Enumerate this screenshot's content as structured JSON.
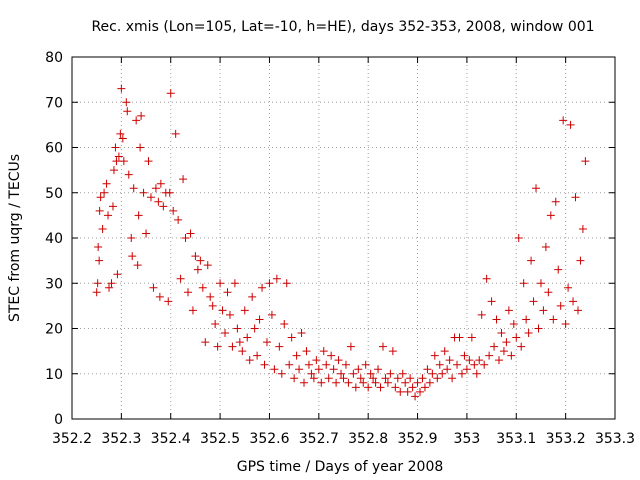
{
  "chart_data": {
    "type": "scatter",
    "title": "Rec. xmis (Lon=105, Lat=-10, h=HE), days 352-353, 2008, window 001",
    "xlabel": "GPS time / Days of year 2008",
    "ylabel": "STEC from uqrg / TECUs",
    "xlim": [
      352.2,
      353.3
    ],
    "ylim": [
      0,
      80
    ],
    "xticks": [
      "352.2",
      "352.3",
      "352.4",
      "352.5",
      "352.6",
      "352.7",
      "352.8",
      "352.9",
      "353",
      "353.1",
      "353.2",
      "353.3"
    ],
    "yticks": [
      "0",
      "10",
      "20",
      "30",
      "40",
      "50",
      "60",
      "70",
      "80"
    ],
    "grid": true,
    "legend": "none",
    "marker": "+",
    "color": "#cc0000",
    "series": [
      {
        "points": [
          [
            352.25,
            28
          ],
          [
            352.252,
            30
          ],
          [
            352.253,
            38
          ],
          [
            352.255,
            35
          ],
          [
            352.256,
            46
          ],
          [
            352.258,
            49
          ],
          [
            352.262,
            42
          ],
          [
            352.265,
            50
          ],
          [
            352.27,
            52
          ],
          [
            352.273,
            45
          ],
          [
            352.275,
            29
          ],
          [
            352.28,
            30
          ],
          [
            352.283,
            47
          ],
          [
            352.285,
            55
          ],
          [
            352.288,
            60
          ],
          [
            352.29,
            57
          ],
          [
            352.292,
            32
          ],
          [
            352.295,
            58
          ],
          [
            352.298,
            63
          ],
          [
            352.3,
            73
          ],
          [
            352.303,
            62
          ],
          [
            352.305,
            57
          ],
          [
            352.31,
            70
          ],
          [
            352.312,
            68
          ],
          [
            352.315,
            54
          ],
          [
            352.32,
            40
          ],
          [
            352.322,
            36
          ],
          [
            352.325,
            51
          ],
          [
            352.33,
            66
          ],
          [
            352.333,
            34
          ],
          [
            352.335,
            45
          ],
          [
            352.338,
            60
          ],
          [
            352.34,
            67
          ],
          [
            352.345,
            50
          ],
          [
            352.35,
            41
          ],
          [
            352.355,
            57
          ],
          [
            352.36,
            49
          ],
          [
            352.365,
            29
          ],
          [
            352.37,
            51
          ],
          [
            352.375,
            48
          ],
          [
            352.378,
            27
          ],
          [
            352.38,
            52
          ],
          [
            352.385,
            47
          ],
          [
            352.39,
            50
          ],
          [
            352.395,
            26
          ],
          [
            352.398,
            50
          ],
          [
            352.4,
            72
          ],
          [
            352.405,
            46
          ],
          [
            352.41,
            63
          ],
          [
            352.415,
            44
          ],
          [
            352.42,
            31
          ],
          [
            352.425,
            53
          ],
          [
            352.43,
            40
          ],
          [
            352.435,
            28
          ],
          [
            352.44,
            41
          ],
          [
            352.445,
            24
          ],
          [
            352.45,
            36
          ],
          [
            352.455,
            33
          ],
          [
            352.46,
            35
          ],
          [
            352.465,
            29
          ],
          [
            352.47,
            17
          ],
          [
            352.475,
            34
          ],
          [
            352.48,
            27
          ],
          [
            352.485,
            25
          ],
          [
            352.49,
            21
          ],
          [
            352.495,
            16
          ],
          [
            352.5,
            30
          ],
          [
            352.505,
            24
          ],
          [
            352.51,
            19
          ],
          [
            352.515,
            28
          ],
          [
            352.52,
            23
          ],
          [
            352.525,
            16
          ],
          [
            352.53,
            30
          ],
          [
            352.535,
            20
          ],
          [
            352.54,
            17
          ],
          [
            352.545,
            15
          ],
          [
            352.55,
            24
          ],
          [
            352.555,
            18
          ],
          [
            352.56,
            13
          ],
          [
            352.565,
            27
          ],
          [
            352.57,
            20
          ],
          [
            352.575,
            14
          ],
          [
            352.58,
            22
          ],
          [
            352.585,
            29
          ],
          [
            352.59,
            12
          ],
          [
            352.595,
            17
          ],
          [
            352.6,
            30
          ],
          [
            352.605,
            23
          ],
          [
            352.61,
            11
          ],
          [
            352.615,
            31
          ],
          [
            352.62,
            16
          ],
          [
            352.625,
            10
          ],
          [
            352.63,
            21
          ],
          [
            352.635,
            30
          ],
          [
            352.64,
            12
          ],
          [
            352.645,
            18
          ],
          [
            352.65,
            9
          ],
          [
            352.655,
            14
          ],
          [
            352.66,
            11
          ],
          [
            352.665,
            19
          ],
          [
            352.67,
            8
          ],
          [
            352.675,
            15
          ],
          [
            352.68,
            12
          ],
          [
            352.685,
            10
          ],
          [
            352.69,
            9
          ],
          [
            352.695,
            13
          ],
          [
            352.7,
            11
          ],
          [
            352.705,
            8
          ],
          [
            352.71,
            15
          ],
          [
            352.715,
            12
          ],
          [
            352.72,
            9
          ],
          [
            352.725,
            14
          ],
          [
            352.73,
            11
          ],
          [
            352.735,
            8
          ],
          [
            352.74,
            13
          ],
          [
            352.745,
            10
          ],
          [
            352.75,
            9
          ],
          [
            352.755,
            12
          ],
          [
            352.76,
            8
          ],
          [
            352.765,
            16
          ],
          [
            352.77,
            10
          ],
          [
            352.775,
            7
          ],
          [
            352.78,
            11
          ],
          [
            352.785,
            9
          ],
          [
            352.79,
            8
          ],
          [
            352.795,
            12
          ],
          [
            352.8,
            7
          ],
          [
            352.805,
            10
          ],
          [
            352.81,
            9
          ],
          [
            352.815,
            8
          ],
          [
            352.82,
            11
          ],
          [
            352.825,
            7
          ],
          [
            352.83,
            16
          ],
          [
            352.835,
            9
          ],
          [
            352.84,
            8
          ],
          [
            352.845,
            10
          ],
          [
            352.85,
            15
          ],
          [
            352.855,
            7
          ],
          [
            352.86,
            9
          ],
          [
            352.865,
            6
          ],
          [
            352.87,
            10
          ],
          [
            352.875,
            8
          ],
          [
            352.88,
            6
          ],
          [
            352.885,
            9
          ],
          [
            352.89,
            7
          ],
          [
            352.895,
            5
          ],
          [
            352.9,
            8
          ],
          [
            352.905,
            6
          ],
          [
            352.91,
            9
          ],
          [
            352.915,
            7
          ],
          [
            352.92,
            11
          ],
          [
            352.925,
            8
          ],
          [
            352.93,
            10
          ],
          [
            352.935,
            14
          ],
          [
            352.94,
            9
          ],
          [
            352.945,
            12
          ],
          [
            352.95,
            10
          ],
          [
            352.955,
            15
          ],
          [
            352.96,
            11
          ],
          [
            352.965,
            13
          ],
          [
            352.97,
            9
          ],
          [
            352.975,
            18
          ],
          [
            352.98,
            12
          ],
          [
            352.985,
            18
          ],
          [
            352.99,
            10
          ],
          [
            352.995,
            14
          ],
          [
            353.0,
            11
          ],
          [
            353.005,
            13
          ],
          [
            353.01,
            18
          ],
          [
            353.015,
            12
          ],
          [
            353.02,
            10
          ],
          [
            353.025,
            13
          ],
          [
            353.03,
            23
          ],
          [
            353.035,
            12
          ],
          [
            353.04,
            31
          ],
          [
            353.045,
            14
          ],
          [
            353.05,
            26
          ],
          [
            353.055,
            16
          ],
          [
            353.06,
            22
          ],
          [
            353.065,
            13
          ],
          [
            353.07,
            19
          ],
          [
            353.075,
            15
          ],
          [
            353.08,
            17
          ],
          [
            353.085,
            24
          ],
          [
            353.09,
            14
          ],
          [
            353.095,
            21
          ],
          [
            353.1,
            18
          ],
          [
            353.105,
            40
          ],
          [
            353.11,
            16
          ],
          [
            353.115,
            30
          ],
          [
            353.12,
            22
          ],
          [
            353.125,
            19
          ],
          [
            353.13,
            35
          ],
          [
            353.135,
            26
          ],
          [
            353.14,
            51
          ],
          [
            353.145,
            20
          ],
          [
            353.15,
            30
          ],
          [
            353.155,
            24
          ],
          [
            353.16,
            38
          ],
          [
            353.165,
            28
          ],
          [
            353.17,
            45
          ],
          [
            353.175,
            22
          ],
          [
            353.18,
            48
          ],
          [
            353.185,
            33
          ],
          [
            353.19,
            25
          ],
          [
            353.195,
            66
          ],
          [
            353.2,
            21
          ],
          [
            353.205,
            29
          ],
          [
            353.21,
            65
          ],
          [
            353.215,
            26
          ],
          [
            353.22,
            49
          ],
          [
            353.225,
            24
          ],
          [
            353.23,
            35
          ],
          [
            353.235,
            42
          ],
          [
            353.24,
            57
          ]
        ]
      }
    ]
  }
}
